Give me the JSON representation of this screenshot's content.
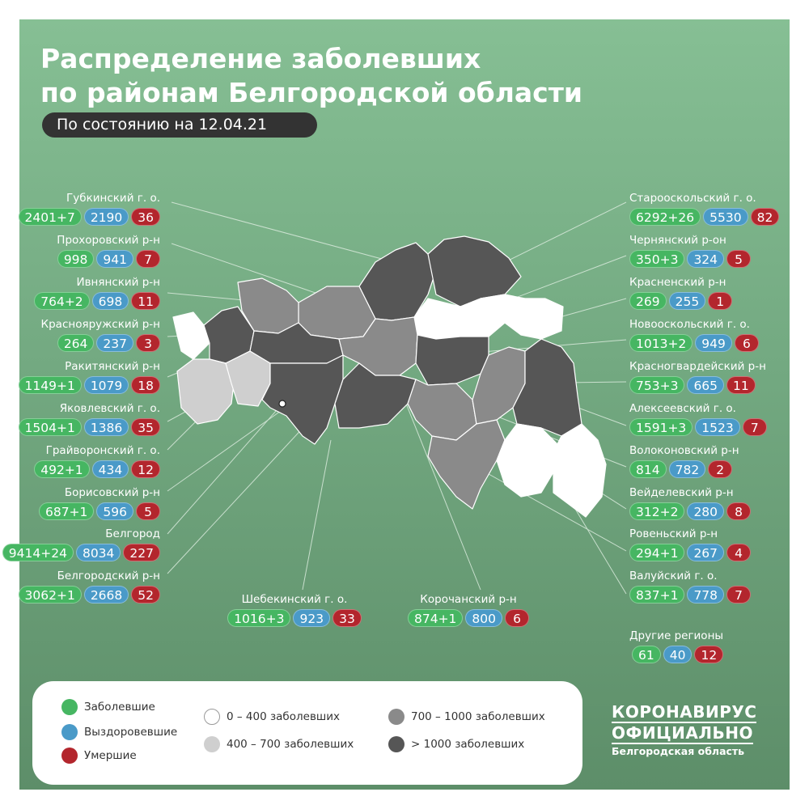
{
  "title": {
    "line1": "Распределение заболевших",
    "line2": "по районам Белгородской области"
  },
  "date_label": "По состоянию на 12.04.21",
  "districts_left": [
    {
      "name": "Губкинский г. о.",
      "sick": "2401+7",
      "recovered": "2190",
      "dead": "36"
    },
    {
      "name": "Прохоровский р-н",
      "sick": "998",
      "recovered": "941",
      "dead": "7"
    },
    {
      "name": "Ивнянский р-н",
      "sick": "764+2",
      "recovered": "698",
      "dead": "11"
    },
    {
      "name": "Краснояружский р-н",
      "sick": "264",
      "recovered": "237",
      "dead": "3"
    },
    {
      "name": "Ракитянский р-н",
      "sick": "1149+1",
      "recovered": "1079",
      "dead": "18"
    },
    {
      "name": "Яковлевский г. о.",
      "sick": "1504+1",
      "recovered": "1386",
      "dead": "35"
    },
    {
      "name": "Грайворонский г. о.",
      "sick": "492+1",
      "recovered": "434",
      "dead": "12"
    },
    {
      "name": "Борисовский р-н",
      "sick": "687+1",
      "recovered": "596",
      "dead": "5"
    },
    {
      "name": "Белгород",
      "sick": "9414+24",
      "recovered": "8034",
      "dead": "227"
    },
    {
      "name": "Белгородский р-н",
      "sick": "3062+1",
      "recovered": "2668",
      "dead": "52"
    }
  ],
  "districts_right": [
    {
      "name": "Старооскольский г. о.",
      "sick": "6292+26",
      "recovered": "5530",
      "dead": "82"
    },
    {
      "name": "Чернянский р-он",
      "sick": "350+3",
      "recovered": "324",
      "dead": "5"
    },
    {
      "name": "Красненский р-н",
      "sick": "269",
      "recovered": "255",
      "dead": "1"
    },
    {
      "name": "Новооскольский г. о.",
      "sick": "1013+2",
      "recovered": "949",
      "dead": "6"
    },
    {
      "name": "Красногвардейский р-н",
      "sick": "753+3",
      "recovered": "665",
      "dead": "11"
    },
    {
      "name": "Алексеевский г. о.",
      "sick": "1591+3",
      "recovered": "1523",
      "dead": "7"
    },
    {
      "name": "Волоконовский р-н",
      "sick": "814",
      "recovered": "782",
      "dead": "2"
    },
    {
      "name": "Вейделевский р-н",
      "sick": "312+2",
      "recovered": "280",
      "dead": "8"
    },
    {
      "name": "Ровеньский р-н",
      "sick": "294+1",
      "recovered": "267",
      "dead": "4"
    },
    {
      "name": "Валуйский г. о.",
      "sick": "837+1",
      "recovered": "778",
      "dead": "7"
    },
    {
      "name": "Другие регионы",
      "sick": "61",
      "recovered": "40",
      "dead": "12"
    }
  ],
  "districts_bottom": [
    {
      "name": "Шебекинский г. о.",
      "sick": "1016+3",
      "recovered": "923",
      "dead": "33"
    },
    {
      "name": "Корочанский р-н",
      "sick": "874+1",
      "recovered": "800",
      "dead": "6"
    }
  ],
  "legend": {
    "sick": "Заболевшие",
    "recovered": "Выздоровевшие",
    "dead": "Умершие",
    "range1": "0 – 400 заболевших",
    "range2": "400 – 700 заболевших",
    "range3": "700 – 1000 заболевших",
    "range4": "> 1000 заболевших"
  },
  "brand": {
    "line1": "КОРОНАВИРУС",
    "line2": "ОФИЦИАЛЬНО",
    "line3": "Белгородская область"
  },
  "colors": {
    "background": "#7fb78d",
    "sick": "#46b662",
    "recovered": "#4a9ac8",
    "dead": "#b3262d",
    "range_0_400": "#ffffff",
    "range_400_700": "#cfcfcf",
    "range_700_1000": "#8a8a8a",
    "range_1000_plus": "#565656"
  }
}
